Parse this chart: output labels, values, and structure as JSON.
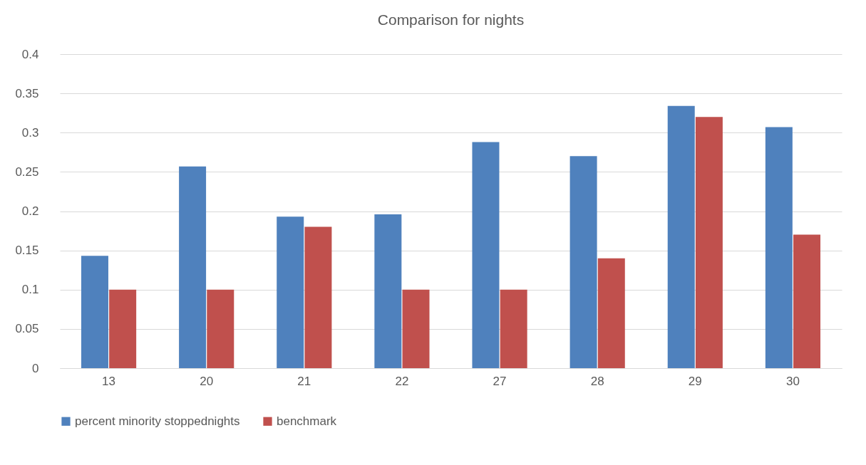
{
  "chart_data": {
    "type": "bar",
    "title": "Comparison for nights",
    "categories": [
      "13",
      "20",
      "21",
      "22",
      "27",
      "28",
      "29",
      "30"
    ],
    "series": [
      {
        "name": "percent minority stoppednights",
        "color": "#4f81bd",
        "values": [
          0.143,
          0.257,
          0.193,
          0.196,
          0.288,
          0.27,
          0.334,
          0.307
        ]
      },
      {
        "name": "benchmark",
        "color": "#c0504d",
        "values": [
          0.1,
          0.1,
          0.18,
          0.1,
          0.1,
          0.14,
          0.32,
          0.17
        ]
      }
    ],
    "ylim": [
      0,
      0.4
    ],
    "yticks": [
      0,
      0.05,
      0.1,
      0.15,
      0.2,
      0.25,
      0.3,
      0.35,
      0.4
    ],
    "grid": "y",
    "legend": "bottom"
  }
}
